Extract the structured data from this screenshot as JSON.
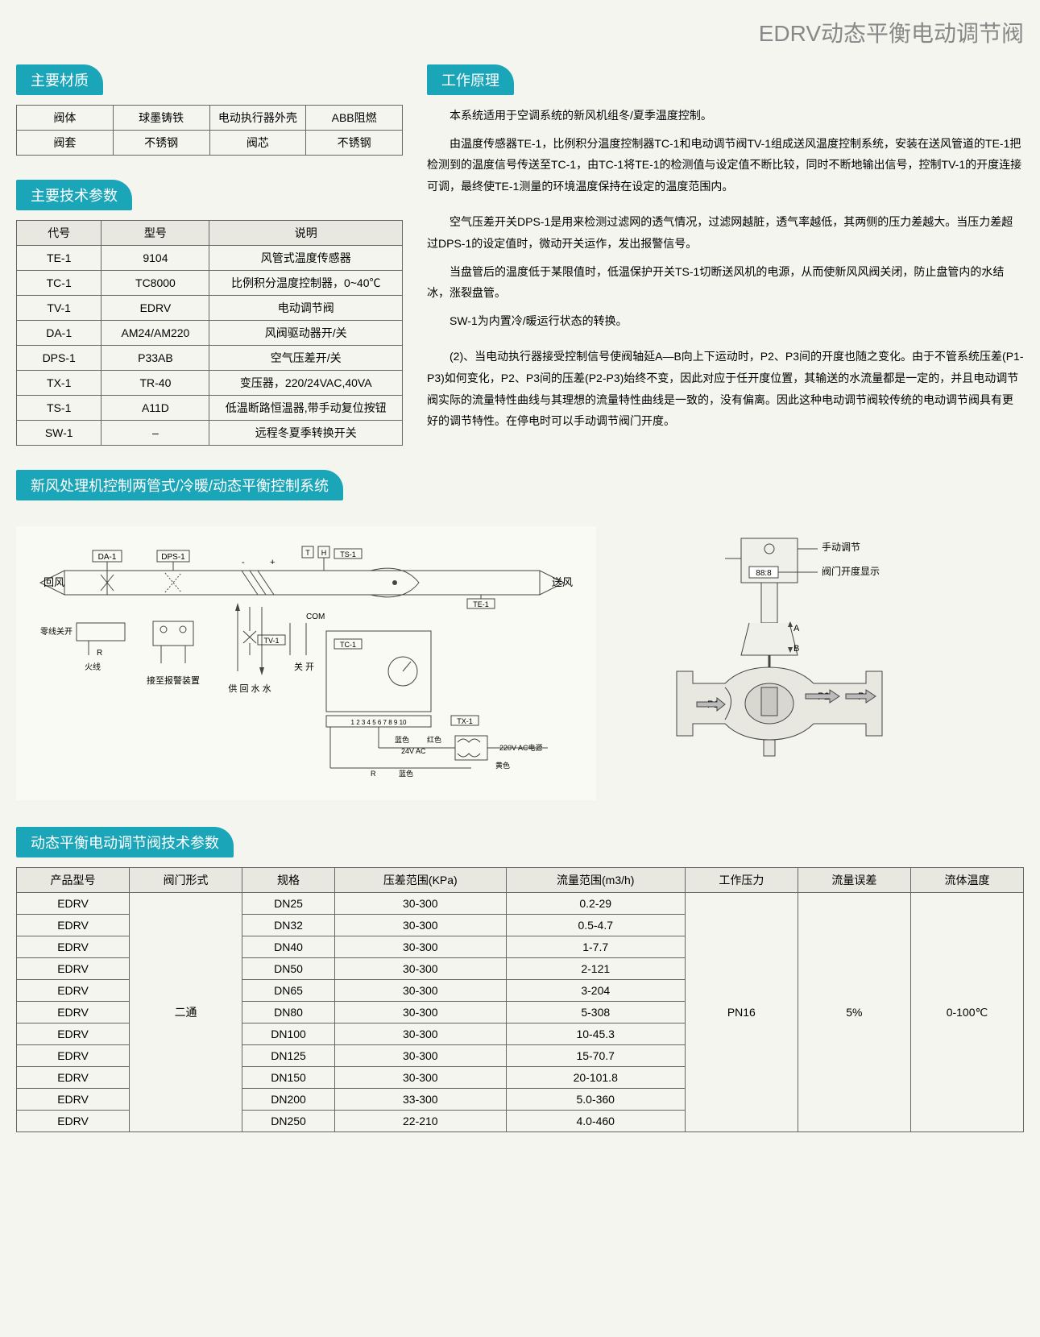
{
  "page_title": "EDRV动态平衡电动调节阀",
  "colors": {
    "accent": "#1aa5b8",
    "text_muted": "#888888",
    "border": "#666666",
    "bg": "#f5f5f0"
  },
  "sections": {
    "materials": {
      "title": "主要材质",
      "rows": [
        [
          "阀体",
          "球墨铸铁",
          "电动执行器外壳",
          "ABB阻燃"
        ],
        [
          "阀套",
          "不锈钢",
          "阀芯",
          "不锈钢"
        ]
      ]
    },
    "tech_params": {
      "title": "主要技术参数",
      "headers": [
        "代号",
        "型号",
        "说明"
      ],
      "rows": [
        [
          "TE-1",
          "9104",
          "风管式温度传感器"
        ],
        [
          "TC-1",
          "TC8000",
          "比例积分温度控制器，0~40℃"
        ],
        [
          "TV-1",
          "EDRV",
          "电动调节阀"
        ],
        [
          "DA-1",
          "AM24/AM220",
          "风阀驱动器开/关"
        ],
        [
          "DPS-1",
          "P33AB",
          "空气压差开/关"
        ],
        [
          "TX-1",
          "TR-40",
          "变压器，220/24VAC,40VA"
        ],
        [
          "TS-1",
          "A11D",
          "低温断路恒温器,带手动复位按钮"
        ],
        [
          "SW-1",
          "–",
          "远程冬夏季转换开关"
        ]
      ]
    },
    "system_diagram": {
      "title": "新风处理机控制两管式/冷暖/动态平衡控制系统",
      "labels": {
        "return_air": "回风",
        "supply_air": "送风",
        "da1": "DA-1",
        "dps1": "DPS-1",
        "ts1": "TS-1",
        "te1": "TE-1",
        "tv1": "TV-1",
        "tc1": "TC-1",
        "tx1": "TX-1",
        "zero_switch": "零线关开",
        "fire_line": "火线",
        "alarm": "接至报警装置",
        "supply_return_water": "供 回\n水 水",
        "off_on": "关 开",
        "com": "COM",
        "blue": "蓝色",
        "red": "红色",
        "yellow": "黄色",
        "v24": "24V AC",
        "v220": "220V AC电源",
        "t": "T",
        "h": "H",
        "r": "R"
      },
      "valve_labels": {
        "manual": "手动调节",
        "display": "阀门开度显示",
        "display_value": "88:8",
        "a": "A",
        "b": "B",
        "p1": "P1",
        "p2": "P2",
        "p3": "P3"
      }
    },
    "principle": {
      "title": "工作原理",
      "paragraphs": [
        "本系统适用于空调系统的新风机组冬/夏季温度控制。",
        "由温度传感器TE-1，比例积分温度控制器TC-1和电动调节阀TV-1组成送风温度控制系统，安装在送风管道的TE-1把检测到的温度信号传送至TC-1，由TC-1将TE-1的检测值与设定值不断比较，同时不断地输出信号，控制TV-1的开度连接可调，最终使TE-1测量的环境温度保持在设定的温度范围内。",
        "空气压差开关DPS-1是用来检测过滤网的透气情况，过滤网越脏，透气率越低，其两侧的压力差越大。当压力差超过DPS-1的设定值时，微动开关运作，发出报警信号。",
        "当盘管后的温度低于某限值时，低温保护开关TS-1切断送风机的电源，从而使新风风阀关闭，防止盘管内的水结冰，涨裂盘管。",
        "SW-1为内置冷/暖运行状态的转换。",
        "(2)、当电动执行器接受控制信号使阀轴延A—B向上下运动时，P2、P3间的开度也随之变化。由于不管系统压差(P1-P3)如何变化，P2、P3间的压差(P2-P3)始终不变，因此对应于任开度位置，其输送的水流量都是一定的，并且电动调节阀实际的流量特性曲线与其理想的流量特性曲线是一致的，没有偏离。因此这种电动调节阀较传统的电动调节阀具有更好的调节特性。在停电时可以手动调节阀门开度。"
      ]
    },
    "final": {
      "title": "动态平衡电动调节阀技术参数",
      "headers": [
        "产品型号",
        "阀门形式",
        "规格",
        "压差范围(KPa)",
        "流量范围(m3/h)",
        "工作压力",
        "流量误差",
        "流体温度"
      ],
      "valve_form": "二通",
      "work_pressure": "PN16",
      "flow_error": "5%",
      "fluid_temp": "0-100℃",
      "rows": [
        [
          "EDRV",
          "DN25",
          "30-300",
          "0.2-29"
        ],
        [
          "EDRV",
          "DN32",
          "30-300",
          "0.5-4.7"
        ],
        [
          "EDRV",
          "DN40",
          "30-300",
          "1-7.7"
        ],
        [
          "EDRV",
          "DN50",
          "30-300",
          "2-121"
        ],
        [
          "EDRV",
          "DN65",
          "30-300",
          "3-204"
        ],
        [
          "EDRV",
          "DN80",
          "30-300",
          "5-308"
        ],
        [
          "EDRV",
          "DN100",
          "30-300",
          "10-45.3"
        ],
        [
          "EDRV",
          "DN125",
          "30-300",
          "15-70.7"
        ],
        [
          "EDRV",
          "DN150",
          "30-300",
          "20-101.8"
        ],
        [
          "EDRV",
          "DN200",
          "33-300",
          "5.0-360"
        ],
        [
          "EDRV",
          "DN250",
          "22-210",
          "4.0-460"
        ]
      ]
    }
  }
}
